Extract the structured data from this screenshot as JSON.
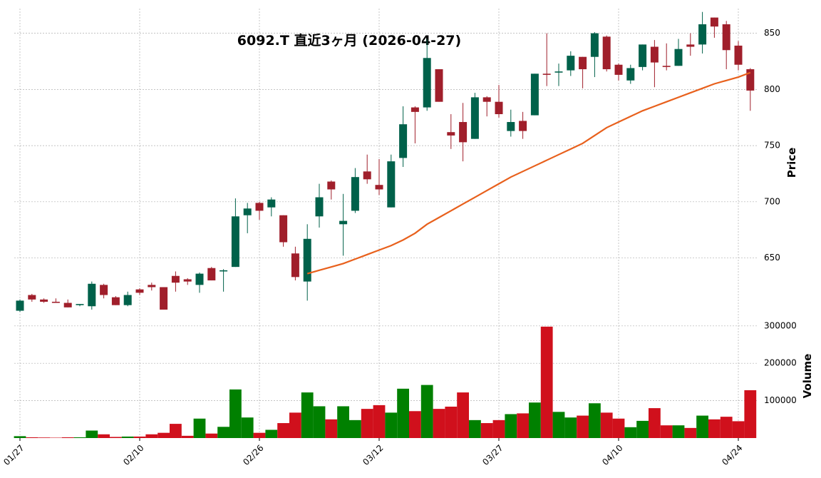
{
  "chart_data": {
    "type": "candlestick",
    "title": "6092.T  直近3ヶ月  (2026-04-27)",
    "ylabel": "Price",
    "x": [
      "01/27",
      "01/28",
      "01/29",
      "01/30",
      "02/02",
      "02/03",
      "02/04",
      "02/05",
      "02/06",
      "02/09",
      "02/10",
      "02/12",
      "02/13",
      "02/16",
      "02/17",
      "02/18",
      "02/19",
      "02/20",
      "02/24",
      "02/25",
      "02/26",
      "02/27",
      "03/02",
      "03/03",
      "03/04",
      "03/05",
      "03/06",
      "03/09",
      "03/10",
      "03/11",
      "03/12",
      "03/13",
      "03/16",
      "03/17",
      "03/18",
      "03/19",
      "03/23",
      "03/24",
      "03/25",
      "03/26",
      "03/27",
      "03/30",
      "03/31",
      "04/01",
      "04/02",
      "04/03",
      "04/06",
      "04/07",
      "04/08",
      "04/09",
      "04/10",
      "04/13",
      "04/14",
      "04/15",
      "04/16",
      "04/17",
      "04/20",
      "04/21",
      "04/22",
      "04/23",
      "04/24",
      "04/27"
    ],
    "xticks": [
      "01/27",
      "02/10",
      "02/26",
      "03/12",
      "03/27",
      "04/10",
      "04/24"
    ],
    "open": [
      603,
      617,
      613,
      611,
      610,
      608,
      607,
      626,
      615,
      608,
      622,
      626,
      624,
      634,
      631,
      626,
      641,
      638,
      642,
      688,
      699,
      695,
      688,
      654,
      629,
      687,
      718,
      680,
      692,
      727,
      715,
      695,
      739,
      784,
      784,
      818,
      762,
      771,
      756,
      793,
      789,
      763,
      772,
      777,
      814,
      815,
      817,
      829,
      829,
      847,
      822,
      808,
      820,
      838,
      821,
      821,
      840,
      840,
      864,
      858,
      839,
      818
    ],
    "high": [
      613,
      618,
      614,
      614,
      613,
      609,
      629,
      627,
      616,
      620,
      623,
      628,
      624,
      638,
      632,
      637,
      642,
      640,
      703,
      699,
      700,
      704,
      688,
      660,
      680,
      716,
      719,
      707,
      730,
      742,
      738,
      742,
      785,
      785,
      845,
      818,
      778,
      788,
      797,
      794,
      804,
      782,
      780,
      814,
      850,
      823,
      834,
      829,
      851,
      848,
      823,
      822,
      840,
      844,
      841,
      845,
      850,
      869,
      864,
      861,
      843,
      819
    ],
    "low": [
      602,
      611,
      610,
      610,
      606,
      607,
      604,
      614,
      608,
      607,
      617,
      621,
      604,
      620,
      626,
      619,
      630,
      620,
      642,
      672,
      684,
      687,
      660,
      630,
      612,
      677,
      702,
      652,
      690,
      716,
      706,
      695,
      731,
      752,
      781,
      789,
      747,
      736,
      756,
      776,
      775,
      758,
      756,
      777,
      803,
      803,
      812,
      801,
      811,
      816,
      808,
      805,
      817,
      802,
      817,
      821,
      830,
      832,
      846,
      818,
      817,
      781
    ],
    "close": [
      612,
      613,
      611,
      610,
      606,
      609,
      627,
      617,
      608,
      617,
      619,
      624,
      604,
      628,
      629,
      636,
      630,
      639,
      687,
      694,
      692,
      702,
      664,
      633,
      667,
      704,
      711,
      683,
      722,
      720,
      711,
      736,
      769,
      780,
      828,
      789,
      759,
      753,
      793,
      789,
      778,
      771,
      763,
      814,
      813,
      816,
      830,
      818,
      850,
      818,
      813,
      819,
      840,
      824,
      820,
      836,
      838,
      858,
      856,
      835,
      822,
      799
    ],
    "up_color": "#00614a",
    "down_color": "#a01f2b",
    "ylim": [
      597,
      872
    ],
    "yticks": [
      650,
      700,
      750,
      800,
      850
    ],
    "grid": true,
    "ma": {
      "color": "#e8601c",
      "values": [
        null,
        null,
        null,
        null,
        null,
        null,
        null,
        null,
        null,
        null,
        null,
        null,
        null,
        null,
        null,
        null,
        null,
        null,
        null,
        null,
        null,
        null,
        null,
        null,
        636,
        639,
        642,
        645,
        649,
        653,
        657,
        661,
        666,
        672,
        680,
        686,
        692,
        698,
        704,
        710,
        716,
        722,
        727,
        732,
        737,
        742,
        747,
        752,
        759,
        766,
        771,
        776,
        781,
        785,
        789,
        793,
        797,
        801,
        805,
        808,
        811,
        815
      ]
    },
    "volume": {
      "ylabel": "Volume",
      "up_color": "#008000",
      "down_color": "#d0101c",
      "ylim": [
        0,
        313000
      ],
      "yticks": [
        100000,
        200000,
        300000
      ],
      "values": [
        5000,
        2000,
        1500,
        1000,
        2000,
        2000,
        20000,
        10000,
        3000,
        4000,
        4000,
        10000,
        14000,
        38000,
        6000,
        52000,
        12000,
        30000,
        130000,
        55000,
        14000,
        22000,
        40000,
        68000,
        122000,
        85000,
        50000,
        85000,
        48000,
        78000,
        88000,
        68000,
        132000,
        72000,
        142000,
        78000,
        84000,
        122000,
        48000,
        40000,
        48000,
        64000,
        66000,
        95000,
        298000,
        70000,
        55000,
        60000,
        93000,
        68000,
        52000,
        29000,
        46000,
        80000,
        34000,
        34000,
        27000,
        60000,
        50000,
        57000,
        45000,
        128000
      ]
    }
  }
}
